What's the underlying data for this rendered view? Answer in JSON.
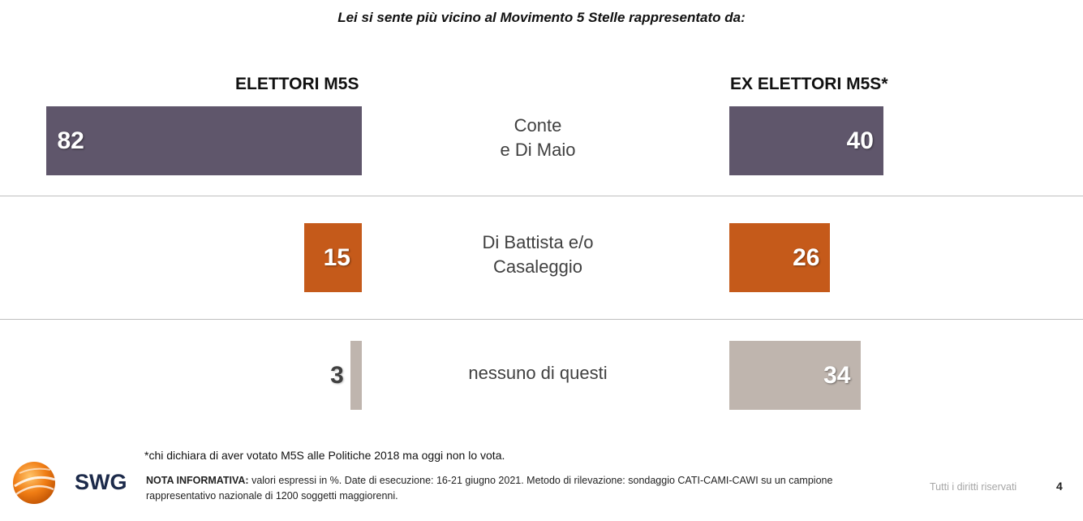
{
  "title": "Lei si sente più vicino al Movimento 5 Stelle rappresentato da:",
  "chart_data": {
    "type": "bar",
    "orientation": "horizontal-butterfly",
    "categories": [
      "Conte\ne Di Maio",
      "Di Battista e/o\nCasaleggio",
      "nessuno di questi"
    ],
    "series": [
      {
        "name": "ELETTORI M5S",
        "values": [
          82,
          15,
          3
        ]
      },
      {
        "name": "EX ELETTORI M5S*",
        "values": [
          40,
          26,
          34
        ]
      }
    ],
    "unit": "%",
    "bar_colors": [
      "#5f566b",
      "#c55a1a",
      "#bfb5ae"
    ]
  },
  "footnote": "*chi dichiara di aver votato M5S alle Politiche 2018 ma oggi non lo vota.",
  "note": {
    "label": "NOTA INFORMATIVA:",
    "text": " valori espressi in %. Date di esecuzione: 16-21 giugno 2021. Metodo di rilevazione: sondaggio CATI-CAMI-CAWI su un campione rappresentativo nazionale di 1200 soggetti maggiorenni."
  },
  "logo": {
    "text": "SWG",
    "icon": "swg-sphere-logo"
  },
  "rights": "Tutti i diritti riservati",
  "page_number": "4"
}
